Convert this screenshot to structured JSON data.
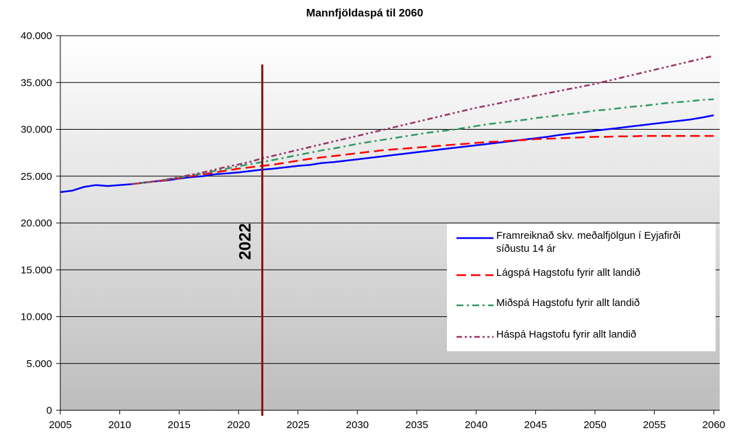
{
  "chart_data": {
    "type": "line",
    "title": "Mannfjöldaspá til 2060",
    "x": [
      2005,
      2006,
      2007,
      2008,
      2009,
      2010,
      2011,
      2012,
      2013,
      2014,
      2015,
      2016,
      2017,
      2018,
      2019,
      2020,
      2021,
      2022,
      2023,
      2024,
      2025,
      2026,
      2027,
      2028,
      2029,
      2030,
      2031,
      2032,
      2033,
      2034,
      2035,
      2036,
      2037,
      2038,
      2039,
      2040,
      2041,
      2042,
      2043,
      2044,
      2045,
      2046,
      2047,
      2048,
      2049,
      2050,
      2051,
      2052,
      2053,
      2054,
      2055,
      2056,
      2057,
      2058,
      2059,
      2060
    ],
    "xlim": [
      2005,
      2060.5
    ],
    "xticks": [
      2005,
      2010,
      2015,
      2020,
      2025,
      2030,
      2035,
      2040,
      2045,
      2050,
      2055,
      2060
    ],
    "ylim": [
      0,
      40000
    ],
    "yticks": [
      0,
      {
        "value": 5000,
        "label": "5.000"
      },
      {
        "value": 10000,
        "label": "10.000"
      },
      {
        "value": 15000,
        "label": "15.000"
      },
      {
        "value": 20000,
        "label": "20.000"
      },
      {
        "value": 25000,
        "label": "25.000"
      },
      {
        "value": 30000,
        "label": "30.000"
      },
      {
        "value": 35000,
        "label": "35.000"
      },
      {
        "value": 40000,
        "label": "40.000"
      }
    ],
    "grid": true,
    "marker": {
      "x": 2022,
      "label": "2022",
      "color": "#8b1010"
    },
    "series": [
      {
        "name": "Framreiknað skv. meðalfjölgun í Eyjafirði síðustu 14 ár",
        "color": "#0000ff",
        "style": "solid",
        "values": [
          23300,
          23450,
          23850,
          24050,
          23950,
          24050,
          24150,
          24300,
          24450,
          24550,
          24750,
          24900,
          25000,
          25200,
          25300,
          25400,
          25550,
          25700,
          25800,
          25950,
          26100,
          26200,
          26400,
          26500,
          26650,
          26800,
          26950,
          27100,
          27250,
          27400,
          27550,
          27700,
          27850,
          28000,
          28150,
          28300,
          28450,
          28600,
          28750,
          28900,
          29050,
          29200,
          29400,
          29550,
          29700,
          29850,
          30000,
          30150,
          30300,
          30450,
          30600,
          30750,
          30900,
          31050,
          31250,
          31500
        ]
      },
      {
        "name": "Lágspá Hagstofu fyrir allt landið",
        "color": "#ff0000",
        "style": "dashed",
        "values": [
          null,
          null,
          null,
          null,
          null,
          null,
          24150,
          24300,
          24450,
          24600,
          24800,
          25000,
          25200,
          25400,
          25600,
          25800,
          25950,
          26100,
          26250,
          26450,
          26650,
          26850,
          27000,
          27150,
          27300,
          27450,
          27600,
          27750,
          27850,
          27950,
          28050,
          28150,
          28250,
          28350,
          28450,
          28550,
          28650,
          28700,
          28800,
          28850,
          28950,
          29000,
          29050,
          29100,
          29150,
          29200,
          29200,
          29250,
          29250,
          29300,
          29300,
          29300,
          29300,
          29300,
          29300,
          29300
        ]
      },
      {
        "name": "Miðspá Hagstofu fyrir allt landið",
        "color": "#339966",
        "style": "dashdot",
        "values": [
          null,
          null,
          null,
          null,
          null,
          null,
          24150,
          24300,
          24450,
          24650,
          24850,
          25050,
          25300,
          25550,
          25800,
          26050,
          26300,
          26500,
          26750,
          27000,
          27250,
          27500,
          27750,
          27950,
          28200,
          28450,
          28650,
          28850,
          29050,
          29250,
          29450,
          29650,
          29800,
          29950,
          30150,
          30350,
          30550,
          30700,
          30850,
          31000,
          31200,
          31350,
          31500,
          31650,
          31800,
          32000,
          32100,
          32250,
          32400,
          32500,
          32650,
          32800,
          32900,
          33000,
          33150,
          33200
        ]
      },
      {
        "name": "Háspá Hagstofu fyrir allt landið",
        "color": "#993366",
        "style": "dashdotdot",
        "values": [
          null,
          null,
          null,
          null,
          null,
          null,
          24150,
          24300,
          24450,
          24650,
          24900,
          25150,
          25400,
          25700,
          26000,
          26250,
          26550,
          26900,
          27200,
          27500,
          27800,
          28100,
          28400,
          28700,
          29000,
          29300,
          29600,
          29900,
          30200,
          30500,
          30800,
          31100,
          31400,
          31700,
          32000,
          32300,
          32550,
          32800,
          33100,
          33350,
          33600,
          33850,
          34100,
          34350,
          34600,
          34850,
          35150,
          35450,
          35750,
          36050,
          36350,
          36650,
          36950,
          37250,
          37550,
          37850
        ]
      }
    ]
  }
}
